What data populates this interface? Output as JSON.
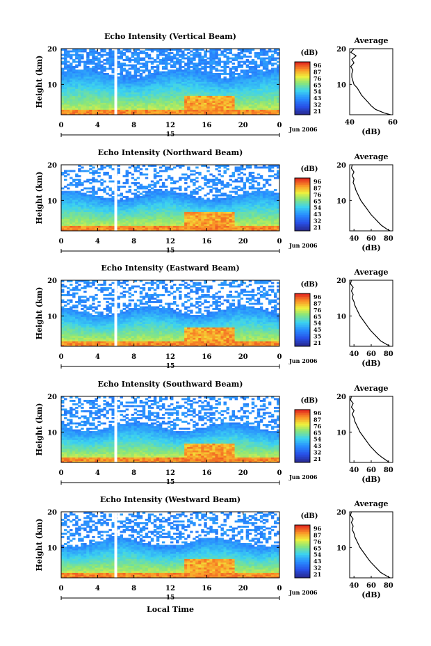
{
  "shared": {
    "xticks": [
      "0",
      "4",
      "8",
      "12",
      "16",
      "20",
      "0"
    ],
    "date_day": "15",
    "date_month_year": "Jun 2006",
    "xlabel": "Local Time",
    "ylabel": "Height (km)",
    "yticks": [
      "20",
      "10"
    ],
    "colorbar_unit": "(dB)",
    "avg_title": "Average",
    "avg_xlabel": "(dB)"
  },
  "chart_data": [
    {
      "type": "heatmap",
      "title": "Echo Intensity (Vertical Beam)",
      "x_range_hours": [
        0,
        24
      ],
      "y_range_km": [
        1.5,
        20
      ],
      "colorbar_ticks": [
        "96",
        "87",
        "76",
        "65",
        "54",
        "43",
        "32",
        "21"
      ],
      "average_profile": {
        "xticks": [
          "40",
          "60"
        ],
        "xlim": [
          40,
          60
        ],
        "height_km": [
          1.5,
          2,
          3,
          4,
          5,
          6,
          7,
          8,
          9,
          10,
          11,
          12,
          13,
          14,
          15,
          16,
          17,
          18,
          19,
          20
        ],
        "db": [
          59,
          56,
          52,
          50,
          48.5,
          47,
          45.5,
          44.5,
          43.5,
          42,
          41.5,
          41,
          41,
          41.5,
          40.5,
          42,
          41,
          43,
          40.5,
          42
        ]
      }
    },
    {
      "type": "heatmap",
      "title": "Echo Intensity (Northward Beam)",
      "x_range_hours": [
        0,
        24
      ],
      "y_range_km": [
        1.5,
        20
      ],
      "colorbar_ticks": [
        "96",
        "87",
        "76",
        "65",
        "54",
        "43",
        "32",
        "21"
      ],
      "average_profile": {
        "xticks": [
          "40",
          "60",
          "80"
        ],
        "xlim": [
          35,
          85
        ],
        "height_km": [
          1.5,
          2,
          3,
          4,
          5,
          6,
          7,
          8,
          9,
          10,
          11,
          12,
          13,
          14,
          15,
          16,
          17,
          18,
          19,
          20
        ],
        "db": [
          82,
          78,
          72,
          68,
          64,
          60,
          57,
          54,
          51,
          48,
          46,
          44,
          42,
          41,
          39,
          40,
          38,
          40,
          37,
          38
        ]
      }
    },
    {
      "type": "heatmap",
      "title": "Echo Intensity (Eastward Beam)",
      "x_range_hours": [
        0,
        24
      ],
      "y_range_km": [
        1.5,
        20
      ],
      "colorbar_ticks": [
        "96",
        "87",
        "76",
        "65",
        "54",
        "45",
        "35",
        "21"
      ],
      "average_profile": {
        "xticks": [
          "40",
          "60",
          "80"
        ],
        "xlim": [
          35,
          85
        ],
        "height_km": [
          1.5,
          2,
          3,
          4,
          5,
          6,
          7,
          8,
          9,
          10,
          11,
          12,
          13,
          14,
          15,
          16,
          17,
          18,
          19,
          20
        ],
        "db": [
          82,
          78,
          71,
          67,
          63,
          59,
          56,
          53,
          50,
          47,
          45,
          43,
          41,
          40,
          38,
          39,
          37,
          39,
          36,
          37
        ]
      }
    },
    {
      "type": "heatmap",
      "title": "Echo Intensity (Southward Beam)",
      "x_range_hours": [
        0,
        24
      ],
      "y_range_km": [
        1.5,
        20
      ],
      "colorbar_ticks": [
        "96",
        "87",
        "76",
        "65",
        "54",
        "43",
        "32",
        "21"
      ],
      "average_profile": {
        "xticks": [
          "40",
          "60",
          "80"
        ],
        "xlim": [
          35,
          85
        ],
        "height_km": [
          1.5,
          2,
          3,
          4,
          5,
          6,
          7,
          8,
          9,
          10,
          11,
          12,
          13,
          14,
          15,
          16,
          17,
          18,
          19,
          20
        ],
        "db": [
          81,
          78,
          72,
          67,
          63,
          59,
          56,
          53,
          50,
          47,
          45,
          43,
          41,
          40,
          38,
          40,
          37,
          39,
          36,
          37
        ]
      }
    },
    {
      "type": "heatmap",
      "title": "Echo Intensity (Westward Beam)",
      "x_range_hours": [
        0,
        24
      ],
      "y_range_km": [
        1.5,
        20
      ],
      "colorbar_ticks": [
        "96",
        "87",
        "76",
        "65",
        "54",
        "43",
        "32",
        "21"
      ],
      "average_profile": {
        "xticks": [
          "40",
          "60",
          "80"
        ],
        "xlim": [
          35,
          85
        ],
        "height_km": [
          1.5,
          2,
          3,
          4,
          5,
          6,
          7,
          8,
          9,
          10,
          11,
          12,
          13,
          14,
          15,
          16,
          17,
          18,
          19,
          20
        ],
        "db": [
          82,
          78,
          71,
          67,
          63,
          59,
          56,
          53,
          50,
          47,
          45,
          43,
          41,
          40,
          38,
          39,
          37,
          39,
          36,
          37
        ]
      }
    }
  ]
}
